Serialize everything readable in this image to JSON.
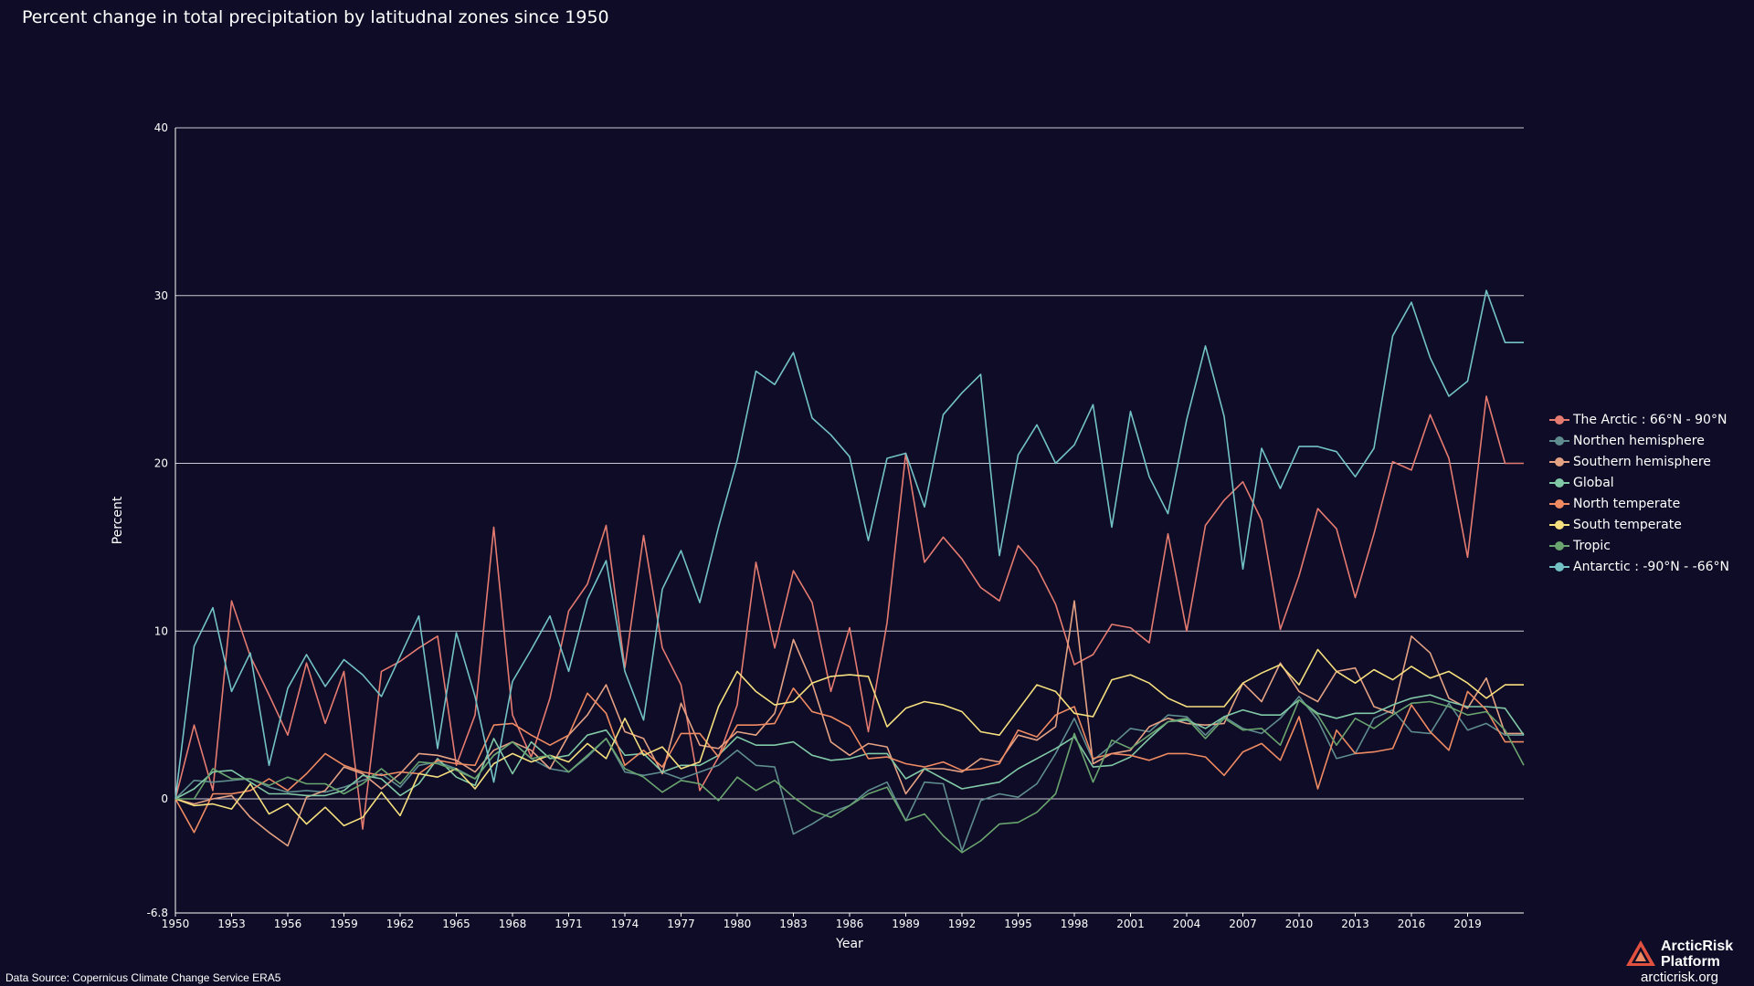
{
  "header": {
    "title": "Percent change in total precipitation by latitudnal zones since 1950"
  },
  "footer": {
    "source": "Data Source: Copernicus Climate Change Service ERA5"
  },
  "logo": {
    "line1": "ArcticRisk",
    "line2": "Platform",
    "url": "arcticrisk.org"
  },
  "chart_data": {
    "type": "line",
    "title": "Percent change in total precipitation by latitudnal zones since 1950",
    "xlabel": "Year",
    "ylabel": "Percent",
    "xlim": [
      1950,
      2022
    ],
    "ylim": [
      -6.8,
      40
    ],
    "y_ticks": [
      {
        "value": -6.8,
        "label": "-6.8"
      },
      {
        "value": 0,
        "label": "0"
      },
      {
        "value": 10,
        "label": "10"
      },
      {
        "value": 20,
        "label": "20"
      },
      {
        "value": 30,
        "label": "30"
      },
      {
        "value": 40,
        "label": "40"
      }
    ],
    "x_ticks": [
      "1950",
      "1953",
      "1956",
      "1959",
      "1962",
      "1965",
      "1968",
      "1971",
      "1974",
      "1977",
      "1980",
      "1983",
      "1986",
      "1989",
      "1992",
      "1995",
      "1998",
      "2001",
      "2004",
      "2007",
      "2010",
      "2013",
      "2016",
      "2019"
    ],
    "grid": "horizontal",
    "legend_position": "right",
    "x": [
      1950,
      1951,
      1952,
      1953,
      1954,
      1955,
      1956,
      1957,
      1958,
      1959,
      1960,
      1961,
      1962,
      1963,
      1964,
      1965,
      1966,
      1967,
      1968,
      1969,
      1970,
      1971,
      1972,
      1973,
      1974,
      1975,
      1976,
      1977,
      1978,
      1979,
      1980,
      1981,
      1982,
      1983,
      1984,
      1985,
      1986,
      1987,
      1988,
      1989,
      1990,
      1991,
      1992,
      1993,
      1994,
      1995,
      1996,
      1997,
      1998,
      1999,
      2000,
      2001,
      2002,
      2003,
      2004,
      2005,
      2006,
      2007,
      2008,
      2009,
      2010,
      2011,
      2012,
      2013,
      2014,
      2015,
      2016,
      2017,
      2018,
      2019,
      2020,
      2021,
      2022
    ],
    "series": [
      {
        "name": "The Arctic : 66°N - 90°N",
        "color": "#e57b70",
        "values": [
          0,
          4.4,
          0.5,
          11.8,
          8.5,
          6.2,
          3.8,
          8.1,
          4.5,
          7.6,
          -1.8,
          7.6,
          8.2,
          9.0,
          9.7,
          2.0,
          5.0,
          16.2,
          5.0,
          2.5,
          6.0,
          11.2,
          12.8,
          16.3,
          7.8,
          15.7,
          9.0,
          6.8,
          0.5,
          2.5,
          5.6,
          14.1,
          9.0,
          13.6,
          11.7,
          6.4,
          10.2,
          4.0,
          10.5,
          20.6,
          14.1,
          15.6,
          14.3,
          12.6,
          11.8,
          15.1,
          13.8,
          11.6,
          8.0,
          8.6,
          10.4,
          10.2,
          9.3,
          15.8,
          10.0,
          16.3,
          17.8,
          18.9,
          16.6,
          10.1,
          13.3,
          17.3,
          16.1,
          12.0,
          15.8,
          20.1,
          19.6,
          22.9,
          20.3,
          14.4,
          24.0,
          20.0,
          20.0
        ]
      },
      {
        "name": "Northen hemisphere",
        "color": "#5f8d8f",
        "values": [
          0,
          1.1,
          1.0,
          1.1,
          1.2,
          0.7,
          0.4,
          0.5,
          0.4,
          0.7,
          1.1,
          1.5,
          0.7,
          2.0,
          2.2,
          1.8,
          1.2,
          2.6,
          3.4,
          2.4,
          1.8,
          1.6,
          2.5,
          3.6,
          1.6,
          1.4,
          1.6,
          1.2,
          1.6,
          2.0,
          2.9,
          2.0,
          1.9,
          -2.1,
          -1.5,
          -0.8,
          -0.4,
          0.5,
          1.0,
          -1.3,
          1.0,
          0.9,
          -3.1,
          -0.1,
          0.3,
          0.1,
          0.9,
          2.7,
          4.8,
          2.3,
          3.2,
          4.2,
          4.0,
          5.0,
          4.9,
          3.8,
          4.9,
          4.2,
          3.9,
          4.8,
          6.1,
          4.7,
          2.4,
          2.7,
          4.8,
          5.3,
          4.0,
          3.9,
          5.7,
          4.1,
          4.5,
          3.8,
          3.8
        ]
      },
      {
        "name": "Southern hemisphere",
        "color": "#e4a183",
        "values": [
          0,
          -0.3,
          0,
          0.2,
          -1.1,
          -2.0,
          -2.8,
          0.1,
          0.5,
          1.9,
          1.5,
          0.6,
          1.5,
          2.7,
          2.6,
          2.3,
          1.6,
          2.9,
          3.4,
          2.9,
          1.8,
          3.8,
          5.0,
          6.8,
          4.0,
          3.6,
          1.5,
          5.7,
          3.2,
          3.0,
          4.0,
          3.8,
          5.1,
          9.5,
          6.9,
          3.4,
          2.6,
          3.3,
          3.1,
          0.3,
          1.8,
          1.8,
          1.6,
          2.4,
          2.2,
          3.8,
          3.5,
          4.3,
          11.8,
          2.1,
          2.7,
          2.9,
          4.3,
          4.8,
          4.5,
          4.4,
          4.5,
          6.9,
          5.8,
          8.1,
          6.4,
          5.8,
          7.6,
          7.8,
          5.5,
          5.1,
          9.7,
          8.7,
          6.0,
          5.4,
          7.2,
          3.9,
          3.9
        ]
      },
      {
        "name": "Global",
        "color": "#80c8a6",
        "values": [
          0,
          0.6,
          1.6,
          1.7,
          1.0,
          0.3,
          0.3,
          0.2,
          0.2,
          0.5,
          1.4,
          1.2,
          0.2,
          0.9,
          2.4,
          1.3,
          0.8,
          3.6,
          1.5,
          3.4,
          2.4,
          2.6,
          3.8,
          4.1,
          2.6,
          2.7,
          1.6,
          2.0,
          2.0,
          2.6,
          3.7,
          3.2,
          3.2,
          3.4,
          2.6,
          2.3,
          2.4,
          2.7,
          2.7,
          1.2,
          1.8,
          1.2,
          0.6,
          0.8,
          1.0,
          1.8,
          2.4,
          3.0,
          3.7,
          1.9,
          2.0,
          2.5,
          3.6,
          4.6,
          4.7,
          4.2,
          4.9,
          5.3,
          5.0,
          5.0,
          5.9,
          5.1,
          4.8,
          5.1,
          5.1,
          5.6,
          6.0,
          6.2,
          5.8,
          5.5,
          5.5,
          5.4,
          3.8
        ]
      },
      {
        "name": "North temperate",
        "color": "#ef8a62",
        "values": [
          0,
          -2.0,
          0.3,
          0.3,
          0.5,
          1.2,
          0.5,
          1.5,
          2.7,
          2.0,
          1.6,
          1.4,
          1.6,
          1.5,
          2.3,
          2.1,
          2.0,
          4.4,
          4.5,
          3.8,
          3.2,
          3.8,
          6.3,
          5.1,
          2.0,
          2.9,
          1.9,
          3.9,
          3.9,
          2.5,
          4.4,
          4.4,
          4.5,
          6.6,
          5.2,
          4.9,
          4.3,
          2.4,
          2.5,
          2.1,
          1.9,
          2.2,
          1.7,
          1.8,
          2.1,
          4.1,
          3.7,
          5.0,
          5.5,
          2.4,
          2.7,
          2.6,
          2.3,
          2.7,
          2.7,
          2.5,
          1.4,
          2.8,
          3.3,
          2.3,
          4.9,
          0.6,
          4.1,
          2.7,
          2.8,
          3.0,
          5.6,
          4.0,
          2.9,
          6.4,
          5.3,
          3.4,
          3.4
        ]
      },
      {
        "name": "South temperate",
        "color": "#f6df7e",
        "values": [
          0,
          -0.4,
          -0.3,
          -0.6,
          0.9,
          -0.9,
          -0.3,
          -1.5,
          -0.5,
          -1.6,
          -1.1,
          0.4,
          -1.0,
          1.5,
          1.3,
          1.8,
          0.6,
          2.1,
          2.7,
          2.2,
          2.6,
          2.2,
          3.3,
          2.4,
          4.8,
          2.6,
          3.1,
          1.8,
          2.2,
          5.5,
          7.6,
          6.4,
          5.6,
          5.8,
          6.9,
          7.3,
          7.4,
          7.3,
          4.3,
          5.4,
          5.8,
          5.6,
          5.2,
          4.0,
          3.8,
          5.3,
          6.8,
          6.4,
          5.1,
          4.9,
          7.1,
          7.4,
          6.9,
          6.0,
          5.5,
          5.5,
          5.5,
          6.9,
          7.5,
          8.0,
          6.8,
          8.9,
          7.6,
          6.9,
          7.7,
          7.1,
          7.9,
          7.2,
          7.6,
          6.9,
          6.0,
          6.8,
          6.8
        ]
      },
      {
        "name": "Tropic",
        "color": "#6aa46f",
        "values": [
          0,
          0,
          1.8,
          1.2,
          1.2,
          0.8,
          1.3,
          0.9,
          0.9,
          0.3,
          0.9,
          1.8,
          0.9,
          2.2,
          2.1,
          1.7,
          1.2,
          2.6,
          3.4,
          2.4,
          2.6,
          1.6,
          2.6,
          3.6,
          1.8,
          1.3,
          0.4,
          1.1,
          0.9,
          -0.1,
          1.3,
          0.5,
          1.1,
          0.1,
          -0.7,
          -1.1,
          -0.4,
          0.3,
          0.7,
          -1.3,
          -0.9,
          -2.2,
          -3.2,
          -2.5,
          -1.5,
          -1.4,
          -0.8,
          0.3,
          3.9,
          1.0,
          3.5,
          3.0,
          3.8,
          4.6,
          4.8,
          3.6,
          4.8,
          4.1,
          4.2,
          3.2,
          5.9,
          5.0,
          3.2,
          4.8,
          4.2,
          5.0,
          5.7,
          5.8,
          5.5,
          5.0,
          5.2,
          4.1,
          2.0
        ]
      },
      {
        "name": "Antarctic : -90°N - -66°N",
        "color": "#73c2c6",
        "values": [
          0,
          9.1,
          11.4,
          6.4,
          8.7,
          2.0,
          6.6,
          8.6,
          6.7,
          8.3,
          7.4,
          6.1,
          8.5,
          10.9,
          3.0,
          9.9,
          6.1,
          1.0,
          7.0,
          8.9,
          10.9,
          7.6,
          11.9,
          14.2,
          7.6,
          4.7,
          12.5,
          14.8,
          11.7,
          16.2,
          20.2,
          25.5,
          24.7,
          26.6,
          22.7,
          21.7,
          20.4,
          15.4,
          20.3,
          20.6,
          17.4,
          22.9,
          24.2,
          25.3,
          14.5,
          20.5,
          22.3,
          20.0,
          21.1,
          23.5,
          16.2,
          23.1,
          19.2,
          17.0,
          22.6,
          27.0,
          22.8,
          13.7,
          20.9,
          18.5,
          21.0,
          21.0,
          20.7,
          19.2,
          20.9,
          27.6,
          29.6,
          26.3,
          24.0,
          24.9,
          30.3,
          27.2,
          27.2
        ]
      }
    ]
  }
}
